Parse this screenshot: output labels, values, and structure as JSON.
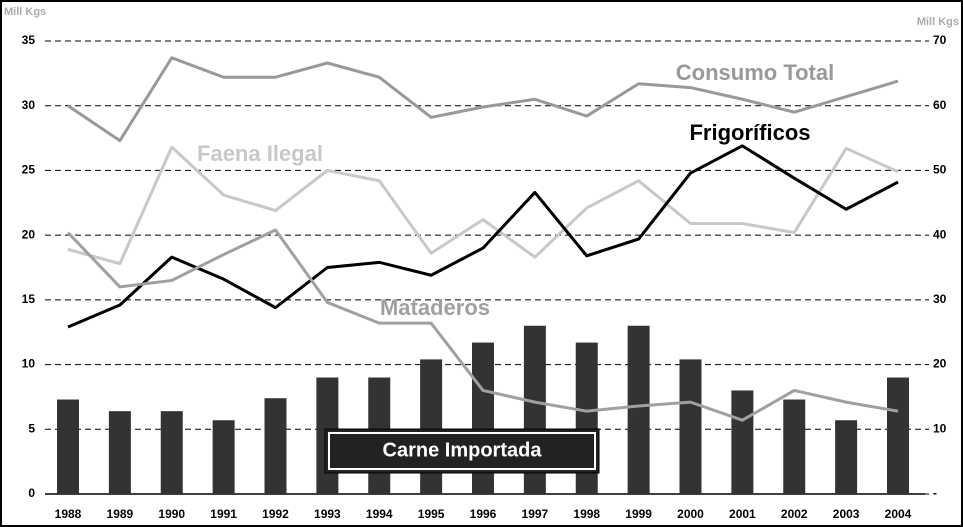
{
  "chart_data": {
    "type": "bar",
    "y_label": "Mill Kgs",
    "y2_label": "Mill Kgs",
    "categories": [
      "1988",
      "1989",
      "1990",
      "1991",
      "1992",
      "1993",
      "1994",
      "1995",
      "1996",
      "1997",
      "1998",
      "1999",
      "2000",
      "2001",
      "2002",
      "2003",
      "2004"
    ],
    "ylim": [
      0,
      35
    ],
    "yticks": [
      0,
      5,
      10,
      15,
      20,
      25,
      30,
      35
    ],
    "y2lim": [
      0,
      70
    ],
    "y2ticks": [
      {
        "value": 0,
        "label": "-"
      },
      10,
      20,
      30,
      40,
      50,
      60,
      70
    ],
    "grid": true,
    "series": [
      {
        "name": "Carne Importada",
        "type": "bar",
        "color": "#333333",
        "values": [
          7.3,
          6.4,
          6.4,
          5.7,
          7.4,
          9.0,
          9.0,
          10.4,
          11.7,
          13.0,
          11.7,
          13.0,
          10.4,
          8.0,
          7.3,
          5.7,
          9.0
        ]
      },
      {
        "name": "Consumo Total",
        "type": "line",
        "color": "#999999",
        "values": [
          30.0,
          27.3,
          33.7,
          32.2,
          32.2,
          33.3,
          32.2,
          29.1,
          29.9,
          30.5,
          29.2,
          31.7,
          31.4,
          30.5,
          29.5,
          30.7,
          31.9
        ]
      },
      {
        "name": "Faena Ilegal",
        "type": "line",
        "color": "#c8c8c8",
        "values": [
          18.9,
          17.8,
          26.8,
          23.1,
          21.9,
          25.0,
          24.2,
          18.6,
          21.2,
          18.3,
          22.1,
          24.2,
          20.9,
          20.9,
          20.2,
          26.7,
          24.9
        ]
      },
      {
        "name": "Frigoríficos",
        "type": "line",
        "color": "#000000",
        "values": [
          12.9,
          14.6,
          18.3,
          16.6,
          14.4,
          17.5,
          17.9,
          16.9,
          19.0,
          23.3,
          18.4,
          19.7,
          24.8,
          26.9,
          24.4,
          22.0,
          24.1
        ]
      },
      {
        "name": "Mataderos",
        "type": "line",
        "color": "#a0a0a0",
        "values": [
          20.2,
          16.0,
          16.5,
          18.5,
          20.4,
          14.8,
          13.2,
          13.2,
          8.0,
          7.1,
          6.4,
          6.8,
          7.1,
          5.7,
          8.0,
          7.1,
          6.4
        ]
      }
    ]
  }
}
